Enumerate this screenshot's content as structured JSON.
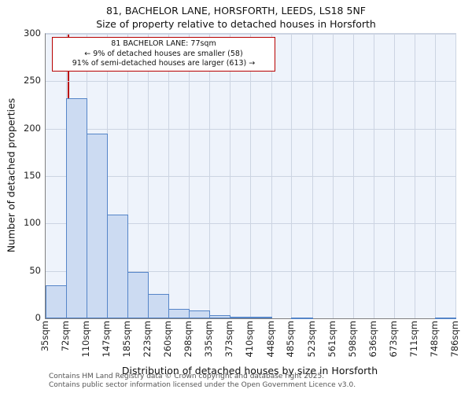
{
  "annotation": {
    "line1": "81 BACHELOR LANE: 77sqm",
    "line2": "← 9% of detached houses are smaller (58)",
    "line3": "91% of semi-detached houses are larger (613) →"
  },
  "footer": {
    "line1": "Contains HM Land Registry data © Crown copyright and database right 2025.",
    "line2": "Contains public sector information licensed under the Open Government Licence v3.0."
  },
  "chart_data": {
    "type": "bar",
    "title": "81, BACHELOR LANE, HORSFORTH, LEEDS, LS18 5NF",
    "subtitle": "Size of property relative to detached houses in Horsforth",
    "xlabel": "Distribution of detached houses by size in Horsforth",
    "ylabel": "Number of detached properties",
    "categories": [
      "35sqm",
      "72sqm",
      "110sqm",
      "147sqm",
      "185sqm",
      "223sqm",
      "260sqm",
      "298sqm",
      "335sqm",
      "373sqm",
      "410sqm",
      "448sqm",
      "485sqm",
      "523sqm",
      "561sqm",
      "598sqm",
      "636sqm",
      "673sqm",
      "711sqm",
      "748sqm",
      "786sqm"
    ],
    "bin_edges": [
      35,
      72,
      110,
      147,
      185,
      223,
      260,
      298,
      335,
      373,
      410,
      448,
      485,
      523,
      561,
      598,
      636,
      673,
      711,
      748,
      786
    ],
    "values": [
      35,
      232,
      195,
      109,
      49,
      26,
      10,
      8,
      3,
      2,
      2,
      0,
      1,
      0,
      0,
      0,
      0,
      0,
      0,
      1
    ],
    "yticks": [
      0,
      50,
      100,
      150,
      200,
      250,
      300
    ],
    "ylim": [
      0,
      300
    ],
    "grid": true,
    "legend": false,
    "marker": {
      "value": 77,
      "label": "81 BACHELOR LANE: 77sqm"
    },
    "colors": {
      "bar_fill": "#ccdbf2",
      "bar_border": "#5585c8",
      "marker": "#b80000",
      "grid": "#ccd4e2",
      "plot_bg": "#eef3fb",
      "annotation_border": "#b80000"
    }
  }
}
